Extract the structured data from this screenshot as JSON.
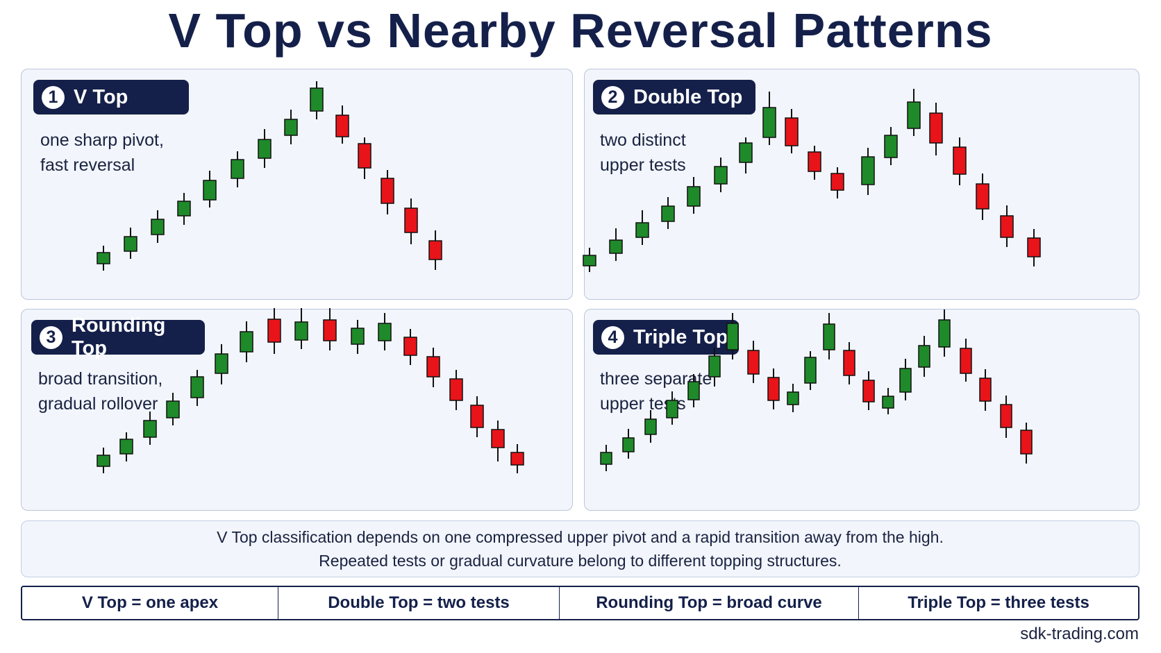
{
  "title": "V Top vs Nearby Reversal Patterns",
  "colors": {
    "bull": "#1f8a2a",
    "bear": "#e8141a",
    "navy": "#14204a"
  },
  "panels": [
    {
      "number": "1",
      "name": "V Top",
      "desc": [
        "one sharp pivot,",
        "fast reversal"
      ]
    },
    {
      "number": "2",
      "name": "Double Top",
      "desc": [
        "two distinct",
        "upper tests"
      ]
    },
    {
      "number": "3",
      "name": "Rounding Top",
      "desc": [
        "broad transition,",
        "gradual rollover"
      ]
    },
    {
      "number": "4",
      "name": "Triple Top",
      "desc": [
        "three separate",
        "upper tests"
      ]
    }
  ],
  "note": {
    "line1": "V Top classification depends on one compressed upper pivot and a rapid transition away from the high.",
    "line2": "Repeated tests or gradual curvature belong to different topping structures."
  },
  "summary": [
    "V Top = one apex",
    "Double Top = two tests",
    "Rounding Top = broad curve",
    "Triple Top = three tests"
  ],
  "footer": "sdk-trading.com"
}
